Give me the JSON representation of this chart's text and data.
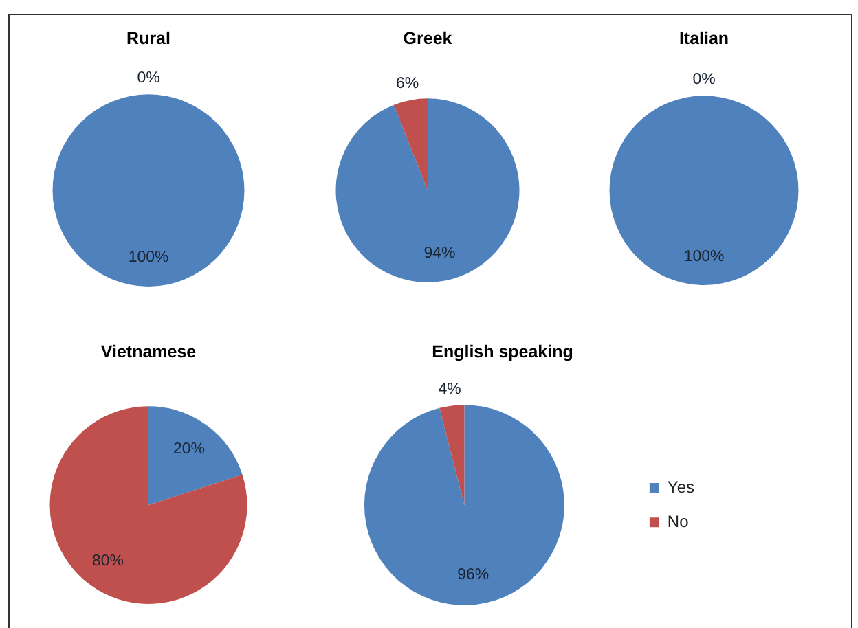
{
  "chart_data": [
    {
      "type": "pie",
      "title": "Rural",
      "categories": [
        null,
        null
      ],
      "values": [
        100,
        0
      ],
      "colors": [
        "#4f81bd",
        "#c0504d"
      ],
      "value_labels": [
        "100%",
        "0%"
      ]
    },
    {
      "type": "pie",
      "title": "Greek",
      "categories": [
        null,
        null
      ],
      "values": [
        94,
        6
      ],
      "colors": [
        "#4f81bd",
        "#c0504d"
      ],
      "value_labels": [
        "94%",
        "6%"
      ]
    },
    {
      "type": "pie",
      "title": "Italian",
      "categories": [
        null,
        null
      ],
      "values": [
        100,
        0
      ],
      "colors": [
        "#4f81bd",
        "#c0504d"
      ],
      "value_labels": [
        "100%",
        "0%"
      ]
    },
    {
      "type": "pie",
      "title": "Vietnamese",
      "categories": [
        null,
        null
      ],
      "values": [
        20,
        80
      ],
      "colors": [
        "#4f81bd",
        "#c0504d"
      ],
      "value_labels": [
        "20%",
        "80%"
      ]
    },
    {
      "type": "pie",
      "title": "English speaking",
      "categories": [
        "Yes",
        "No"
      ],
      "values": [
        96,
        4
      ],
      "colors": [
        "#4f81bd",
        "#c0504d"
      ],
      "value_labels": [
        "96%",
        "4%"
      ],
      "legend": "right"
    }
  ]
}
